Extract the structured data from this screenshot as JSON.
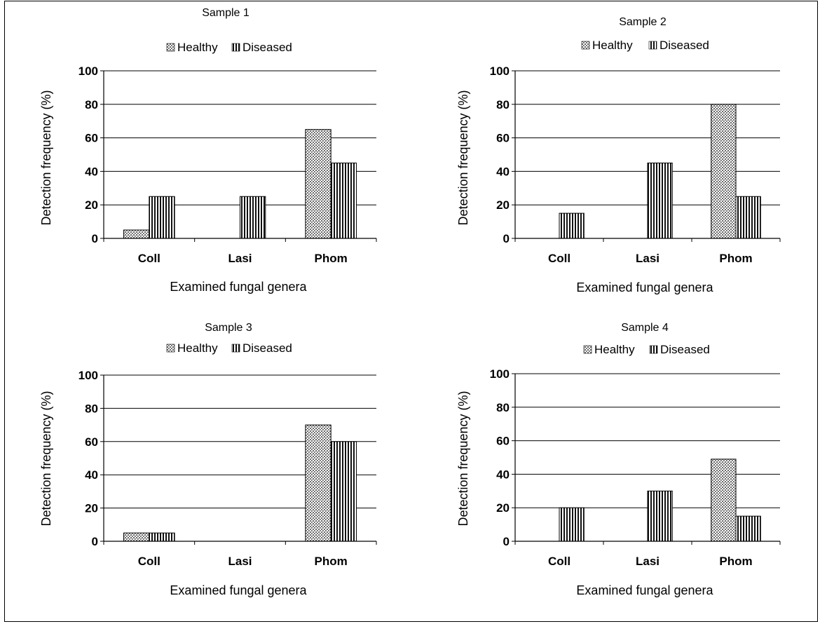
{
  "colors": {
    "healthy_fill": "#9a9a9a",
    "diseased_fill": "#111111",
    "axis": "#000000",
    "grid": "#000000"
  },
  "legend": {
    "healthy": "Healthy",
    "diseased": "Diseased"
  },
  "chart_data": [
    {
      "type": "bar",
      "title": "Sample 1",
      "xlabel": "Examined fungal genera",
      "ylabel": "Detection frequency (%)",
      "categories": [
        "Coll",
        "Lasi",
        "Phom"
      ],
      "series": [
        {
          "name": "Healthy",
          "values": [
            5,
            0,
            65
          ]
        },
        {
          "name": "Diseased",
          "values": [
            25,
            25,
            45
          ]
        }
      ],
      "ylim": [
        0,
        100
      ],
      "yticks": [
        "0",
        "20",
        "40",
        "60",
        "80",
        "100"
      ],
      "grid": true,
      "legend_position": "top"
    },
    {
      "type": "bar",
      "title": "Sample 2",
      "xlabel": "Examined fungal genera",
      "ylabel": "Detection frequency (%)",
      "categories": [
        "Coll",
        "Lasi",
        "Phom"
      ],
      "series": [
        {
          "name": "Healthy",
          "values": [
            0,
            0,
            80
          ]
        },
        {
          "name": "Diseased",
          "values": [
            15,
            45,
            25
          ]
        }
      ],
      "ylim": [
        0,
        100
      ],
      "yticks": [
        "0",
        "20",
        "40",
        "60",
        "80",
        "100"
      ],
      "grid": true,
      "legend_position": "top"
    },
    {
      "type": "bar",
      "title": "Sample 3",
      "xlabel": "Examined fungal genera",
      "ylabel": "Detection frequency (%)",
      "categories": [
        "Coll",
        "Lasi",
        "Phom"
      ],
      "series": [
        {
          "name": "Healthy",
          "values": [
            5,
            0,
            70
          ]
        },
        {
          "name": "Diseased",
          "values": [
            5,
            0,
            60
          ]
        }
      ],
      "ylim": [
        0,
        100
      ],
      "yticks": [
        "0",
        "20",
        "40",
        "60",
        "80",
        "100"
      ],
      "grid": true,
      "legend_position": "top"
    },
    {
      "type": "bar",
      "title": "Sample 4",
      "xlabel": "Examined fungal genera",
      "ylabel": "Detection frequency (%)",
      "categories": [
        "Coll",
        "Lasi",
        "Phom"
      ],
      "series": [
        {
          "name": "Healthy",
          "values": [
            0,
            0,
            49
          ]
        },
        {
          "name": "Diseased",
          "values": [
            20,
            30,
            15
          ]
        }
      ],
      "ylim": [
        0,
        100
      ],
      "yticks": [
        "0",
        "20",
        "40",
        "60",
        "80",
        "100"
      ],
      "grid": true,
      "legend_position": "top"
    }
  ]
}
